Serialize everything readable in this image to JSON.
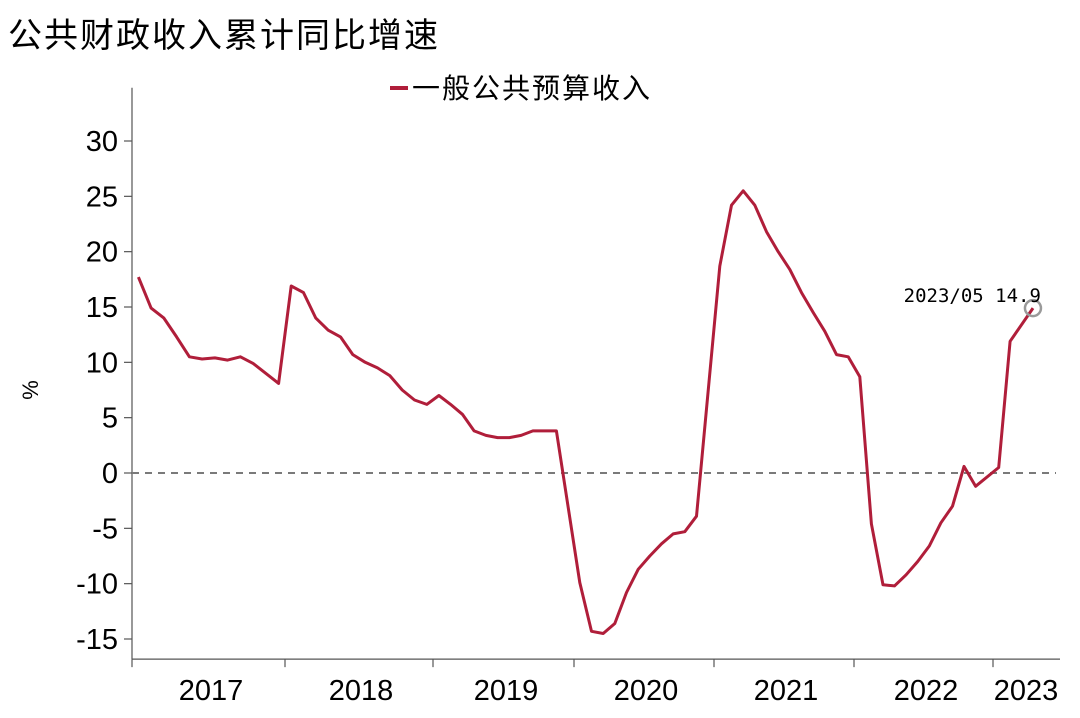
{
  "chart_data": {
    "type": "line",
    "title": "公共财政收入累计同比增速",
    "ylabel": "%",
    "xlabel": "",
    "ylim": [
      -17,
      33
    ],
    "yticks": [
      30,
      25,
      20,
      15,
      10,
      5,
      0,
      -5,
      -10,
      -15
    ],
    "ytick_labels": [
      "30",
      "25",
      "20",
      "15",
      "10",
      "5",
      "0",
      "-5",
      "-10",
      "-15"
    ],
    "year_labels": [
      "2017",
      "2018",
      "2019",
      "2020",
      "2021",
      "2022",
      "2023"
    ],
    "zero_line": true,
    "legend_position": "top-center",
    "series": [
      {
        "name": "一般公共预算收入",
        "color": "#B01E3A",
        "points": [
          [
            "2017-02",
            17.7
          ],
          [
            "2017-03",
            14.9
          ],
          [
            "2017-04",
            14.0
          ],
          [
            "2017-05",
            12.3
          ],
          [
            "2017-06",
            10.5
          ],
          [
            "2017-07",
            10.3
          ],
          [
            "2017-08",
            10.4
          ],
          [
            "2017-09",
            10.2
          ],
          [
            "2017-10",
            10.5
          ],
          [
            "2017-11",
            9.9
          ],
          [
            "2017-12",
            9.0
          ],
          [
            "2017-13",
            8.1
          ],
          [
            "2018-02",
            16.9
          ],
          [
            "2018-03",
            16.3
          ],
          [
            "2018-04",
            14.0
          ],
          [
            "2018-05",
            12.9
          ],
          [
            "2018-06",
            12.3
          ],
          [
            "2018-07",
            10.7
          ],
          [
            "2018-08",
            10.0
          ],
          [
            "2018-09",
            9.5
          ],
          [
            "2018-10",
            8.8
          ],
          [
            "2018-11",
            7.5
          ],
          [
            "2018-12",
            6.6
          ],
          [
            "2018-13",
            6.2
          ],
          [
            "2019-02",
            7.0
          ],
          [
            "2019-03",
            6.2
          ],
          [
            "2019-04",
            5.3
          ],
          [
            "2019-05",
            3.8
          ],
          [
            "2019-06",
            3.4
          ],
          [
            "2019-07",
            3.2
          ],
          [
            "2019-08",
            3.2
          ],
          [
            "2019-09",
            3.4
          ],
          [
            "2019-10",
            3.8
          ],
          [
            "2019-11",
            3.8
          ],
          [
            "2019-12",
            3.8
          ],
          [
            "2020-02",
            -9.9
          ],
          [
            "2020-03",
            -14.3
          ],
          [
            "2020-04",
            -14.5
          ],
          [
            "2020-05",
            -13.6
          ],
          [
            "2020-06",
            -10.8
          ],
          [
            "2020-07",
            -8.7
          ],
          [
            "2020-08",
            -7.5
          ],
          [
            "2020-09",
            -6.4
          ],
          [
            "2020-10",
            -5.5
          ],
          [
            "2020-11",
            -5.3
          ],
          [
            "2020-12",
            -3.9
          ],
          [
            "2021-02",
            18.7
          ],
          [
            "2021-03",
            24.2
          ],
          [
            "2021-04",
            25.5
          ],
          [
            "2021-05",
            24.2
          ],
          [
            "2021-06",
            21.8
          ],
          [
            "2021-07",
            20.0
          ],
          [
            "2021-08",
            18.4
          ],
          [
            "2021-09",
            16.3
          ],
          [
            "2021-10",
            14.5
          ],
          [
            "2021-11",
            12.8
          ],
          [
            "2021-12",
            10.7
          ],
          [
            "2021-13",
            10.5
          ],
          [
            "2022-02",
            8.7
          ],
          [
            "2022-03",
            -4.6
          ],
          [
            "2022-04",
            -10.1
          ],
          [
            "2022-05",
            -10.2
          ],
          [
            "2022-06",
            -9.2
          ],
          [
            "2022-07",
            -8.0
          ],
          [
            "2022-08",
            -6.6
          ],
          [
            "2022-09",
            -4.5
          ],
          [
            "2022-10",
            -3.0
          ],
          [
            "2022-11",
            0.6
          ],
          [
            "2022-12",
            -1.2
          ],
          [
            "2023-02",
            0.5
          ],
          [
            "2023-03",
            11.9
          ],
          [
            "2023-05",
            14.9
          ]
        ]
      }
    ],
    "annotation": {
      "text": "2023/05 14.9",
      "x": "2023-05",
      "y": 14.9
    }
  }
}
